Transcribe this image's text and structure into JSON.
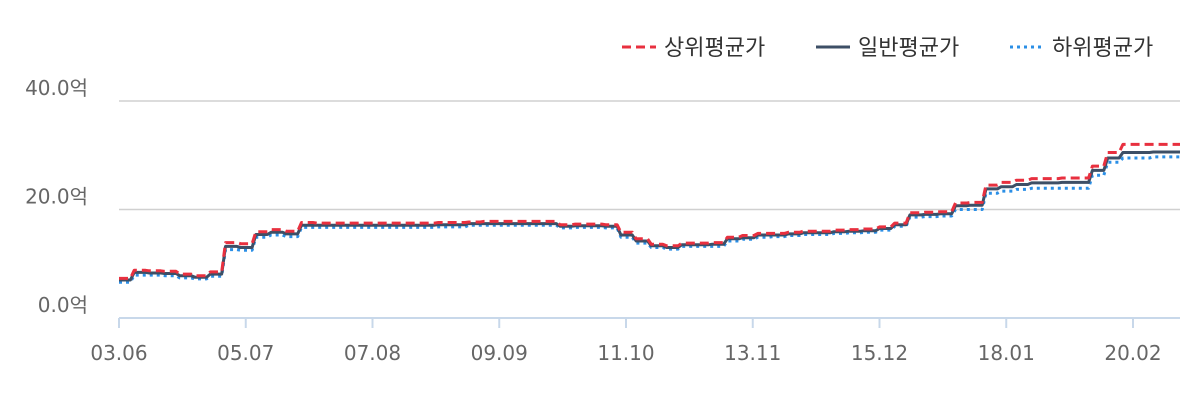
{
  "chart_data": {
    "type": "line",
    "legend_position": "top-right",
    "grid": true,
    "y_ticks": [
      "0.0억",
      "20.0억",
      "40.0억"
    ],
    "y_tick_values": [
      0,
      20,
      40
    ],
    "ylim": [
      0,
      40
    ],
    "x_ticks": [
      "03.06",
      "05.07",
      "07.08",
      "09.09",
      "11.10",
      "13.11",
      "15.12",
      "18.01",
      "20.02"
    ],
    "x": [
      "03.06",
      "03.09",
      "03.12",
      "04.03",
      "04.06",
      "04.09",
      "04.12",
      "05.03",
      "05.06",
      "05.09",
      "05.12",
      "06.03",
      "06.06",
      "06.09",
      "06.12",
      "07.03",
      "07.06",
      "07.09",
      "07.12",
      "08.03",
      "08.06",
      "08.09",
      "08.12",
      "09.03",
      "09.06",
      "09.09",
      "09.12",
      "10.03",
      "10.06",
      "10.09",
      "10.12",
      "11.03",
      "11.06",
      "11.09",
      "11.12",
      "12.03",
      "12.06",
      "12.09",
      "12.12",
      "13.03",
      "13.06",
      "13.09",
      "13.12",
      "14.03",
      "14.06",
      "14.09",
      "14.12",
      "15.03",
      "15.06",
      "15.09",
      "15.12",
      "16.03",
      "16.06",
      "16.09",
      "16.12",
      "17.03",
      "17.06",
      "17.09",
      "17.12",
      "18.03",
      "18.06",
      "18.09",
      "18.12",
      "19.03",
      "19.06",
      "19.09",
      "19.12",
      "20.03",
      "20.06"
    ],
    "series": [
      {
        "name": "상위평균가",
        "color": "#e8303f",
        "dash": "dashed",
        "values": [
          7.3,
          8.8,
          8.7,
          8.6,
          8.1,
          7.8,
          8.5,
          13.9,
          13.7,
          15.9,
          16.3,
          16.0,
          17.6,
          17.5,
          17.5,
          17.5,
          17.5,
          17.5,
          17.5,
          17.5,
          17.5,
          17.6,
          17.6,
          17.7,
          17.8,
          17.8,
          17.8,
          17.8,
          17.8,
          17.2,
          17.3,
          17.3,
          17.2,
          15.8,
          14.6,
          13.6,
          13.3,
          13.8,
          13.8,
          13.9,
          14.9,
          15.2,
          15.6,
          15.6,
          15.8,
          16.0,
          16.0,
          16.2,
          16.3,
          16.4,
          16.8,
          17.5,
          19.4,
          19.5,
          19.6,
          21.2,
          21.3,
          24.5,
          25.0,
          25.4,
          25.7,
          25.7,
          25.8,
          25.8,
          28.0,
          30.5,
          32.0,
          32.0,
          32.0
        ]
      },
      {
        "name": "일반평균가",
        "color": "#3d4f66",
        "dash": "solid",
        "values": [
          7.0,
          8.4,
          8.3,
          8.2,
          7.8,
          7.5,
          8.1,
          13.2,
          13.0,
          15.4,
          15.8,
          15.5,
          17.1,
          17.1,
          17.1,
          17.1,
          17.1,
          17.1,
          17.1,
          17.1,
          17.1,
          17.2,
          17.2,
          17.4,
          17.4,
          17.4,
          17.4,
          17.4,
          17.4,
          16.9,
          17.0,
          17.0,
          16.9,
          15.3,
          14.2,
          13.3,
          13.0,
          13.5,
          13.5,
          13.6,
          14.6,
          14.8,
          15.3,
          15.3,
          15.5,
          15.7,
          15.7,
          15.9,
          16.0,
          16.1,
          16.5,
          17.2,
          19.0,
          19.1,
          19.2,
          20.7,
          20.8,
          23.8,
          24.2,
          24.6,
          24.9,
          24.9,
          25.0,
          25.0,
          27.2,
          29.5,
          30.5,
          30.5,
          30.6
        ]
      },
      {
        "name": "하위평균가",
        "color": "#2b8fe6",
        "dash": "dotted",
        "values": [
          6.6,
          7.9,
          7.9,
          7.8,
          7.4,
          7.2,
          7.7,
          12.6,
          12.5,
          14.9,
          15.3,
          15.0,
          16.7,
          16.7,
          16.7,
          16.7,
          16.7,
          16.7,
          16.7,
          16.7,
          16.7,
          16.8,
          16.8,
          17.1,
          17.1,
          17.1,
          17.1,
          17.1,
          17.1,
          16.6,
          16.7,
          16.7,
          16.6,
          14.9,
          13.8,
          13.0,
          12.7,
          13.2,
          13.2,
          13.2,
          14.2,
          14.5,
          14.9,
          15.0,
          15.2,
          15.4,
          15.4,
          15.6,
          15.7,
          15.8,
          16.2,
          16.9,
          18.6,
          18.7,
          18.8,
          20.0,
          20.0,
          23.0,
          23.4,
          23.7,
          23.9,
          23.9,
          23.9,
          23.9,
          26.3,
          28.7,
          29.5,
          29.5,
          29.7
        ]
      }
    ]
  }
}
